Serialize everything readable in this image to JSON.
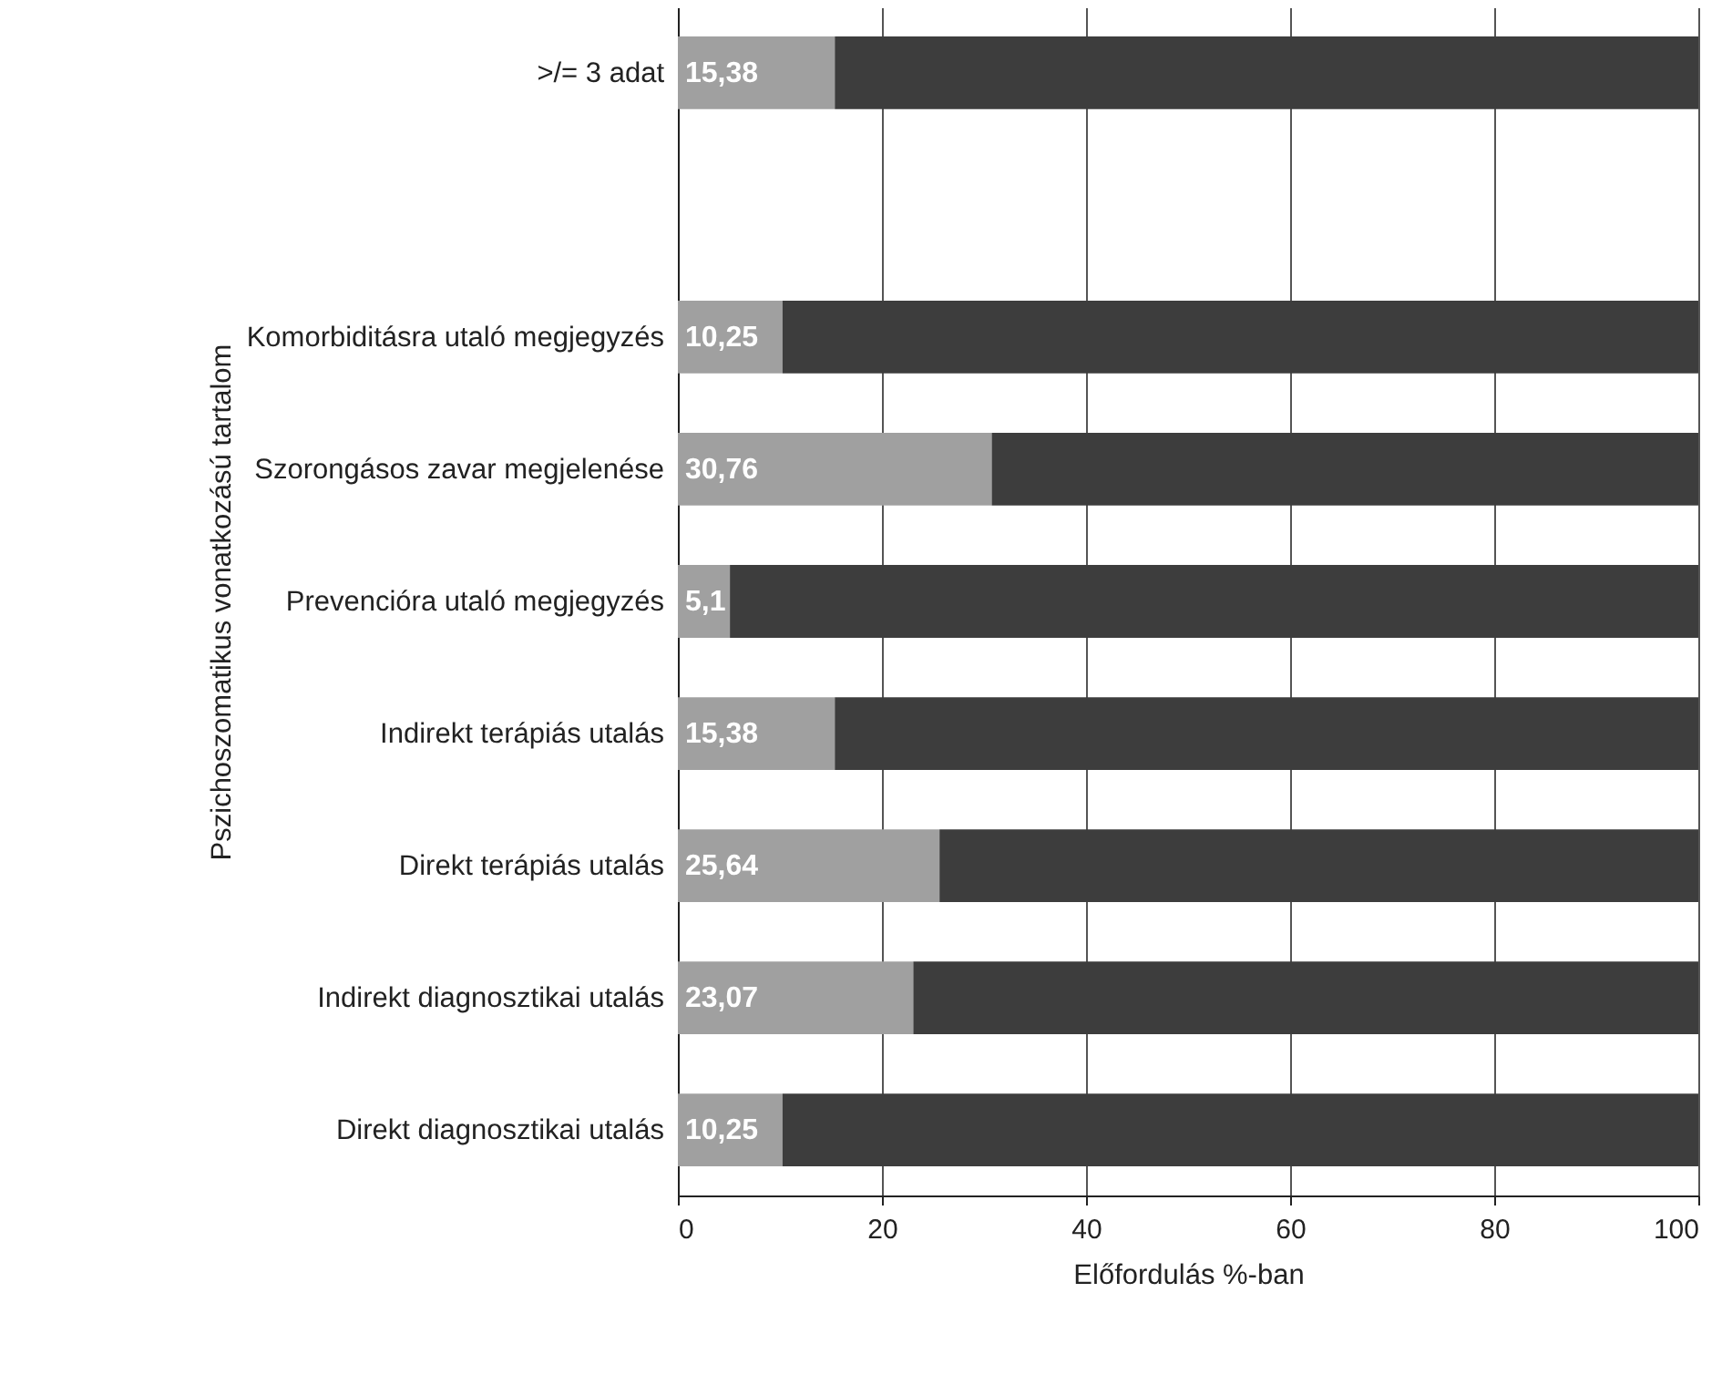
{
  "chart_data": {
    "type": "bar",
    "orientation": "horizontal",
    "stacked": true,
    "categories": [
      ">/= 3 adat",
      null,
      "Komorbiditásra utaló megjegyzés",
      "Szorongásos zavar megjelenése",
      "Prevencióra utaló megjegyzés",
      "Indirekt terápiás utalás",
      "Direkt terápiás utalás",
      "Indirekt diagnosztikai utalás",
      "Direkt diagnosztikai utalás"
    ],
    "series": [
      {
        "color": "#a0a0a0",
        "values": [
          15.38,
          null,
          10.25,
          30.76,
          5.1,
          15.38,
          25.64,
          23.07,
          10.25
        ],
        "value_labels": [
          "15,38",
          null,
          "10,25",
          "30,76",
          "5,1",
          "15,38",
          "25,64",
          "23,07",
          "10,25"
        ]
      },
      {
        "color": "#3d3d3d",
        "values": [
          84.62,
          null,
          89.75,
          69.24,
          94.9,
          84.62,
          74.36,
          76.93,
          89.75
        ]
      }
    ],
    "xlabel": "Előfordulás %-ban",
    "ylabel": "Pszichoszomatikus vonatkozású tartalom",
    "xlim": [
      0,
      100
    ],
    "xticks": [
      0,
      20,
      40,
      60,
      80,
      100
    ],
    "grid": "x"
  }
}
